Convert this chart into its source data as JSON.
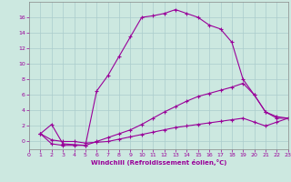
{
  "xlabel": "Windchill (Refroidissement éolien,°C)",
  "bg_color": "#cce8e0",
  "grid_color": "#aacccc",
  "line_color": "#990099",
  "xlim": [
    0,
    23
  ],
  "ylim": [
    -1.0,
    18.0
  ],
  "yticks": [
    0,
    2,
    4,
    6,
    8,
    10,
    12,
    14,
    16
  ],
  "xticks": [
    0,
    1,
    2,
    3,
    4,
    5,
    6,
    7,
    8,
    9,
    10,
    11,
    12,
    13,
    14,
    15,
    16,
    17,
    18,
    19,
    20,
    21,
    22,
    23
  ],
  "series1_x": [
    1,
    2,
    3,
    4,
    5,
    6,
    7,
    8,
    9,
    10,
    11,
    12,
    13,
    14,
    15,
    16,
    17,
    18,
    19,
    20,
    21,
    22,
    23
  ],
  "series1_y": [
    1.0,
    2.2,
    -0.3,
    -0.4,
    -0.5,
    6.5,
    8.5,
    11.0,
    13.5,
    16.0,
    16.2,
    16.5,
    17.0,
    16.5,
    16.0,
    15.0,
    14.5,
    12.8,
    8.0,
    6.0,
    3.8,
    3.0,
    3.0
  ],
  "series2_x": [
    1,
    2,
    3,
    4,
    5,
    6,
    7,
    8,
    9,
    10,
    11,
    12,
    13,
    14,
    15,
    16,
    17,
    18,
    19,
    20,
    21,
    22,
    23
  ],
  "series2_y": [
    1.0,
    -0.3,
    -0.5,
    -0.5,
    -0.5,
    0.0,
    0.5,
    1.0,
    1.5,
    2.2,
    3.0,
    3.8,
    4.5,
    5.2,
    5.8,
    6.2,
    6.6,
    7.0,
    7.5,
    6.0,
    3.8,
    3.2,
    3.0
  ],
  "series3_x": [
    1,
    2,
    3,
    4,
    5,
    6,
    7,
    8,
    9,
    10,
    11,
    12,
    13,
    14,
    15,
    16,
    17,
    18,
    19,
    20,
    21,
    22,
    23
  ],
  "series3_y": [
    1.0,
    0.2,
    0.0,
    0.0,
    -0.2,
    -0.1,
    0.0,
    0.3,
    0.6,
    0.9,
    1.2,
    1.5,
    1.8,
    2.0,
    2.2,
    2.4,
    2.6,
    2.8,
    3.0,
    2.5,
    2.0,
    2.5,
    3.0
  ]
}
